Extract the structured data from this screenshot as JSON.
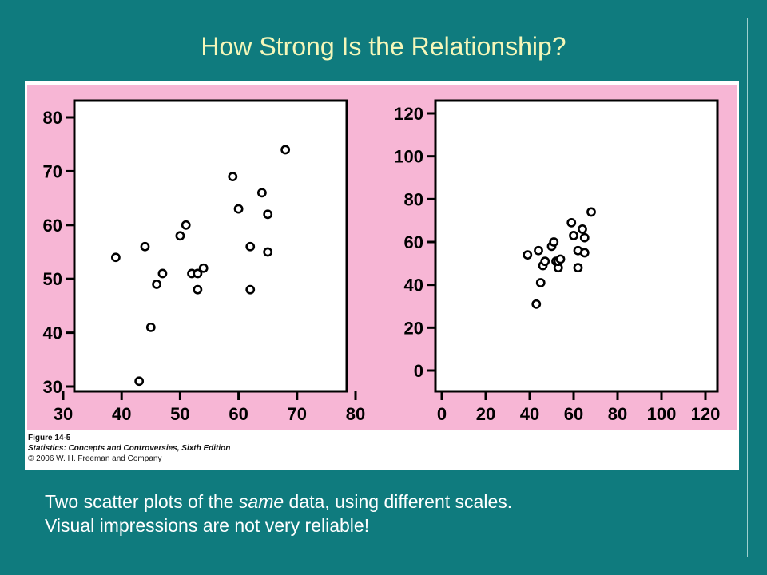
{
  "slide": {
    "title": "How Strong Is the Relationship?",
    "description_line1_before": "Two scatter plots of the ",
    "description_line1_emph": "same",
    "description_line1_after": " data, using different scales.",
    "description_line2": "Visual impressions are not very reliable!"
  },
  "caption": {
    "figure_label": "Figure 14-5",
    "book_title": "Statistics: Concepts and Controversies, Sixth Edition",
    "copyright": "© 2006 W. H. Freeman and Company"
  },
  "colors": {
    "slide_background": "#0f7b7e",
    "title": "#f5f7b9",
    "figure_background": "#f7b6d5"
  },
  "chart_data": [
    {
      "type": "scatter",
      "xlim": [
        30,
        80
      ],
      "ylim": [
        30,
        80
      ],
      "x_ticks": [
        30,
        40,
        50,
        60,
        70,
        80
      ],
      "y_ticks": [
        30,
        40,
        50,
        60,
        70,
        80
      ],
      "points": [
        {
          "x": 39,
          "y": 54
        },
        {
          "x": 43,
          "y": 31
        },
        {
          "x": 44,
          "y": 56
        },
        {
          "x": 45,
          "y": 41
        },
        {
          "x": 46,
          "y": 49
        },
        {
          "x": 47,
          "y": 51
        },
        {
          "x": 50,
          "y": 58
        },
        {
          "x": 51,
          "y": 60
        },
        {
          "x": 52,
          "y": 51
        },
        {
          "x": 53,
          "y": 48
        },
        {
          "x": 53,
          "y": 51
        },
        {
          "x": 54,
          "y": 52
        },
        {
          "x": 59,
          "y": 69
        },
        {
          "x": 60,
          "y": 63
        },
        {
          "x": 62,
          "y": 56
        },
        {
          "x": 62,
          "y": 48
        },
        {
          "x": 64,
          "y": 66
        },
        {
          "x": 65,
          "y": 62
        },
        {
          "x": 65,
          "y": 55
        },
        {
          "x": 68,
          "y": 74
        }
      ]
    },
    {
      "type": "scatter",
      "xlim": [
        0,
        120
      ],
      "ylim": [
        0,
        120
      ],
      "x_ticks": [
        0,
        20,
        40,
        60,
        80,
        100,
        120
      ],
      "y_ticks": [
        0,
        20,
        40,
        60,
        80,
        100,
        120
      ],
      "points": [
        {
          "x": 39,
          "y": 54
        },
        {
          "x": 43,
          "y": 31
        },
        {
          "x": 44,
          "y": 56
        },
        {
          "x": 45,
          "y": 41
        },
        {
          "x": 46,
          "y": 49
        },
        {
          "x": 47,
          "y": 51
        },
        {
          "x": 50,
          "y": 58
        },
        {
          "x": 51,
          "y": 60
        },
        {
          "x": 52,
          "y": 51
        },
        {
          "x": 53,
          "y": 48
        },
        {
          "x": 53,
          "y": 51
        },
        {
          "x": 54,
          "y": 52
        },
        {
          "x": 59,
          "y": 69
        },
        {
          "x": 60,
          "y": 63
        },
        {
          "x": 62,
          "y": 56
        },
        {
          "x": 62,
          "y": 48
        },
        {
          "x": 64,
          "y": 66
        },
        {
          "x": 65,
          "y": 62
        },
        {
          "x": 65,
          "y": 55
        },
        {
          "x": 68,
          "y": 74
        }
      ]
    }
  ]
}
